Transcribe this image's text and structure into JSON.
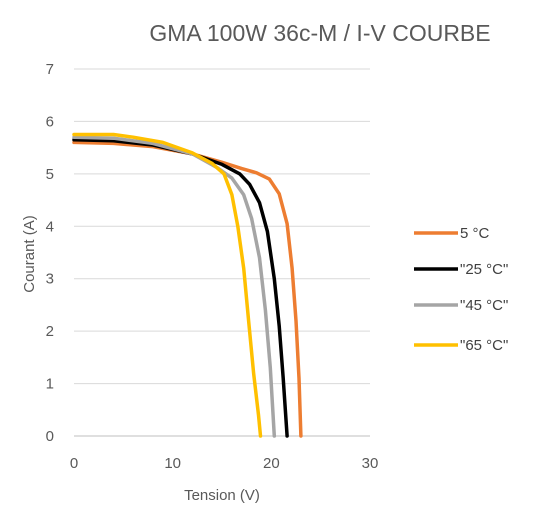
{
  "chart_data": {
    "type": "line",
    "title": "GMA 100W 36c-M / I-V COURBE",
    "xlabel": "Tension (V)",
    "ylabel": "Courant (A)",
    "xlim": [
      0,
      30
    ],
    "ylim": [
      0,
      7
    ],
    "x_ticks": [
      "0",
      "10",
      "20",
      "30"
    ],
    "y_ticks": [
      "0",
      "1",
      "2",
      "3",
      "4",
      "5",
      "6",
      "7"
    ],
    "grid": "horizontal",
    "legend_position": "right",
    "series": [
      {
        "name": "5 °C",
        "color": "#ED7D31",
        "points": [
          [
            0,
            5.6
          ],
          [
            4,
            5.58
          ],
          [
            8,
            5.52
          ],
          [
            12,
            5.38
          ],
          [
            15,
            5.22
          ],
          [
            17,
            5.1
          ],
          [
            18.5,
            5.02
          ],
          [
            19.8,
            4.9
          ],
          [
            20.8,
            4.62
          ],
          [
            21.6,
            4.05
          ],
          [
            22.1,
            3.2
          ],
          [
            22.5,
            2.2
          ],
          [
            22.8,
            1.1
          ],
          [
            23.0,
            0
          ]
        ]
      },
      {
        "name": "\"25 °C\"",
        "color": "#000000",
        "points": [
          [
            0,
            5.65
          ],
          [
            4,
            5.63
          ],
          [
            8,
            5.55
          ],
          [
            12,
            5.38
          ],
          [
            15,
            5.18
          ],
          [
            16.8,
            5.0
          ],
          [
            17.8,
            4.8
          ],
          [
            18.8,
            4.45
          ],
          [
            19.6,
            3.9
          ],
          [
            20.3,
            3.0
          ],
          [
            20.8,
            2.1
          ],
          [
            21.2,
            1.1
          ],
          [
            21.6,
            0
          ]
        ]
      },
      {
        "name": "\"45 °C\"",
        "color": "#A5A5A5",
        "points": [
          [
            0,
            5.7
          ],
          [
            4,
            5.68
          ],
          [
            8,
            5.58
          ],
          [
            12,
            5.38
          ],
          [
            14.5,
            5.12
          ],
          [
            16,
            4.92
          ],
          [
            17.2,
            4.6
          ],
          [
            18.0,
            4.15
          ],
          [
            18.8,
            3.4
          ],
          [
            19.4,
            2.4
          ],
          [
            19.9,
            1.3
          ],
          [
            20.3,
            0
          ]
        ]
      },
      {
        "name": "\"65 °C\"",
        "color": "#FFC000",
        "points": [
          [
            0,
            5.75
          ],
          [
            4,
            5.75
          ],
          [
            6,
            5.7
          ],
          [
            9,
            5.6
          ],
          [
            12,
            5.4
          ],
          [
            14,
            5.2
          ],
          [
            15.2,
            5.0
          ],
          [
            16.0,
            4.6
          ],
          [
            16.6,
            4.0
          ],
          [
            17.2,
            3.2
          ],
          [
            17.7,
            2.2
          ],
          [
            18.2,
            1.2
          ],
          [
            18.7,
            0.4
          ],
          [
            18.9,
            0
          ]
        ]
      }
    ]
  }
}
